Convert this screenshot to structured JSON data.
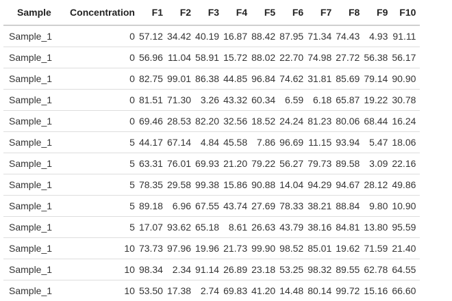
{
  "table": {
    "headers": [
      "Sample",
      "Concentration",
      "F1",
      "F2",
      "F3",
      "F4",
      "F5",
      "F6",
      "F7",
      "F8",
      "F9",
      "F10"
    ],
    "rows": [
      [
        "Sample_1",
        "0",
        "57.12",
        "34.42",
        "40.19",
        "16.87",
        "88.42",
        "87.95",
        "71.34",
        "74.43",
        "4.93",
        "91.11"
      ],
      [
        "Sample_1",
        "0",
        "56.96",
        "11.04",
        "58.91",
        "15.72",
        "88.02",
        "22.70",
        "74.98",
        "27.72",
        "56.38",
        "56.17"
      ],
      [
        "Sample_1",
        "0",
        "82.75",
        "99.01",
        "86.38",
        "44.85",
        "96.84",
        "74.62",
        "31.81",
        "85.69",
        "79.14",
        "90.90"
      ],
      [
        "Sample_1",
        "0",
        "81.51",
        "71.30",
        "3.26",
        "43.32",
        "60.34",
        "6.59",
        "6.18",
        "65.87",
        "19.22",
        "30.78"
      ],
      [
        "Sample_1",
        "0",
        "69.46",
        "28.53",
        "82.20",
        "32.56",
        "18.52",
        "24.24",
        "81.23",
        "80.06",
        "68.44",
        "16.24"
      ],
      [
        "Sample_1",
        "5",
        "44.17",
        "67.14",
        "4.84",
        "45.58",
        "7.86",
        "96.69",
        "11.15",
        "93.94",
        "5.47",
        "18.06"
      ],
      [
        "Sample_1",
        "5",
        "63.31",
        "76.01",
        "69.93",
        "21.20",
        "79.22",
        "56.27",
        "79.73",
        "89.58",
        "3.09",
        "22.16"
      ],
      [
        "Sample_1",
        "5",
        "78.35",
        "29.58",
        "99.38",
        "15.86",
        "90.88",
        "14.04",
        "94.29",
        "94.67",
        "28.12",
        "49.86"
      ],
      [
        "Sample_1",
        "5",
        "89.18",
        "6.96",
        "67.55",
        "43.74",
        "27.69",
        "78.33",
        "38.21",
        "88.84",
        "9.80",
        "10.90"
      ],
      [
        "Sample_1",
        "5",
        "17.07",
        "93.62",
        "65.18",
        "8.61",
        "26.63",
        "43.79",
        "38.16",
        "84.81",
        "13.80",
        "95.59"
      ],
      [
        "Sample_1",
        "10",
        "73.73",
        "97.96",
        "19.96",
        "21.73",
        "99.90",
        "98.52",
        "85.01",
        "19.62",
        "71.59",
        "21.40"
      ],
      [
        "Sample_1",
        "10",
        "98.34",
        "2.34",
        "91.14",
        "26.89",
        "23.18",
        "53.25",
        "98.32",
        "89.55",
        "62.78",
        "64.55"
      ],
      [
        "Sample_1",
        "10",
        "53.50",
        "17.38",
        "2.74",
        "69.83",
        "41.20",
        "14.48",
        "80.14",
        "99.72",
        "15.16",
        "66.60"
      ]
    ]
  }
}
